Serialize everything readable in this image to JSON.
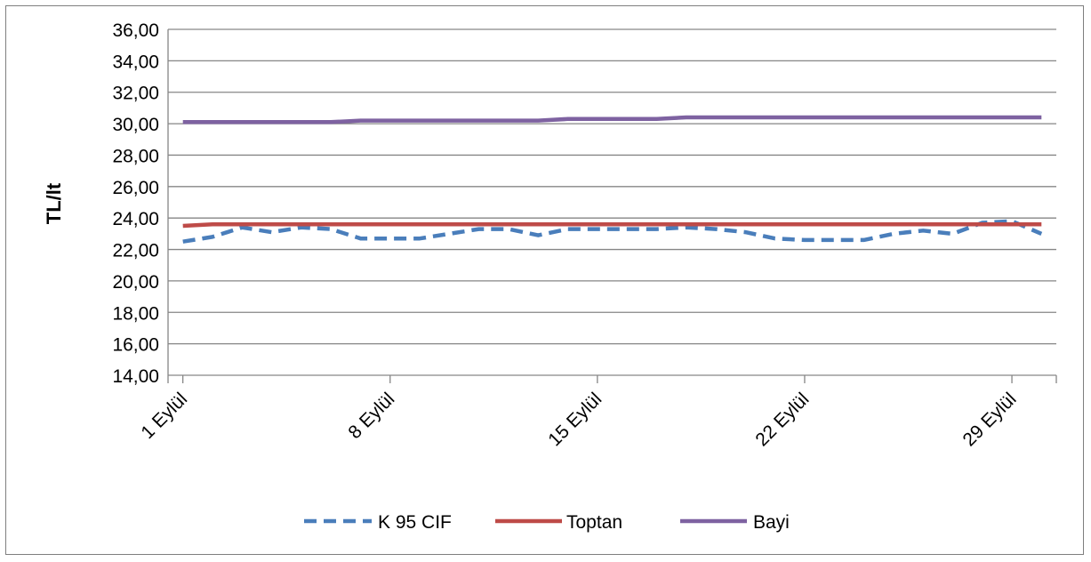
{
  "chart_data": {
    "type": "line",
    "title": "",
    "xlabel": "",
    "ylabel": "TL/lt",
    "ylim": [
      14,
      36
    ],
    "ytick_step": 2,
    "grid": true,
    "legend_position": "bottom",
    "x_tick_labels": [
      "1 Eylül",
      "8 Eylül",
      "15 Eylül",
      "22 Eylül",
      "29 Eylül"
    ],
    "x_tick_days": [
      1,
      8,
      15,
      22,
      29
    ],
    "x_range": [
      0.5,
      30.5
    ],
    "series": [
      {
        "name": "K 95 CIF",
        "color": "#4a7ebb",
        "dash": true,
        "points": [
          [
            1,
            22.5
          ],
          [
            2,
            22.8
          ],
          [
            3,
            23.4
          ],
          [
            4,
            23.1
          ],
          [
            5,
            23.4
          ],
          [
            6,
            23.3
          ],
          [
            7,
            22.7
          ],
          [
            8,
            22.7
          ],
          [
            9,
            22.7
          ],
          [
            10,
            23.0
          ],
          [
            11,
            23.3
          ],
          [
            12,
            23.3
          ],
          [
            13,
            22.9
          ],
          [
            14,
            23.3
          ],
          [
            15,
            23.3
          ],
          [
            16,
            23.3
          ],
          [
            17,
            23.3
          ],
          [
            18,
            23.4
          ],
          [
            19,
            23.3
          ],
          [
            20,
            23.1
          ],
          [
            21,
            22.7
          ],
          [
            22,
            22.6
          ],
          [
            23,
            22.6
          ],
          [
            24,
            22.6
          ],
          [
            25,
            23.0
          ],
          [
            26,
            23.2
          ],
          [
            27,
            23.0
          ],
          [
            28,
            23.7
          ],
          [
            29,
            23.8
          ],
          [
            30,
            23.0
          ]
        ]
      },
      {
        "name": "Toptan",
        "color": "#be4b48",
        "dash": false,
        "points": [
          [
            1,
            23.5
          ],
          [
            2,
            23.6
          ],
          [
            3,
            23.6
          ],
          [
            4,
            23.6
          ],
          [
            5,
            23.6
          ],
          [
            6,
            23.6
          ],
          [
            7,
            23.6
          ],
          [
            8,
            23.6
          ],
          [
            9,
            23.6
          ],
          [
            10,
            23.6
          ],
          [
            11,
            23.6
          ],
          [
            12,
            23.6
          ],
          [
            13,
            23.6
          ],
          [
            14,
            23.6
          ],
          [
            15,
            23.6
          ],
          [
            16,
            23.6
          ],
          [
            17,
            23.6
          ],
          [
            18,
            23.6
          ],
          [
            19,
            23.6
          ],
          [
            20,
            23.6
          ],
          [
            21,
            23.6
          ],
          [
            22,
            23.6
          ],
          [
            23,
            23.6
          ],
          [
            24,
            23.6
          ],
          [
            25,
            23.6
          ],
          [
            26,
            23.6
          ],
          [
            27,
            23.6
          ],
          [
            28,
            23.6
          ],
          [
            29,
            23.6
          ],
          [
            30,
            23.6
          ]
        ]
      },
      {
        "name": "Bayi",
        "color": "#7e62a1",
        "dash": false,
        "points": [
          [
            1,
            30.1
          ],
          [
            2,
            30.1
          ],
          [
            3,
            30.1
          ],
          [
            4,
            30.1
          ],
          [
            5,
            30.1
          ],
          [
            6,
            30.1
          ],
          [
            7,
            30.2
          ],
          [
            8,
            30.2
          ],
          [
            9,
            30.2
          ],
          [
            10,
            30.2
          ],
          [
            11,
            30.2
          ],
          [
            12,
            30.2
          ],
          [
            13,
            30.2
          ],
          [
            14,
            30.3
          ],
          [
            15,
            30.3
          ],
          [
            16,
            30.3
          ],
          [
            17,
            30.3
          ],
          [
            18,
            30.4
          ],
          [
            19,
            30.4
          ],
          [
            20,
            30.4
          ],
          [
            21,
            30.4
          ],
          [
            22,
            30.4
          ],
          [
            23,
            30.4
          ],
          [
            24,
            30.4
          ],
          [
            25,
            30.4
          ],
          [
            26,
            30.4
          ],
          [
            27,
            30.4
          ],
          [
            28,
            30.4
          ],
          [
            29,
            30.4
          ],
          [
            30,
            30.4
          ]
        ]
      }
    ]
  }
}
